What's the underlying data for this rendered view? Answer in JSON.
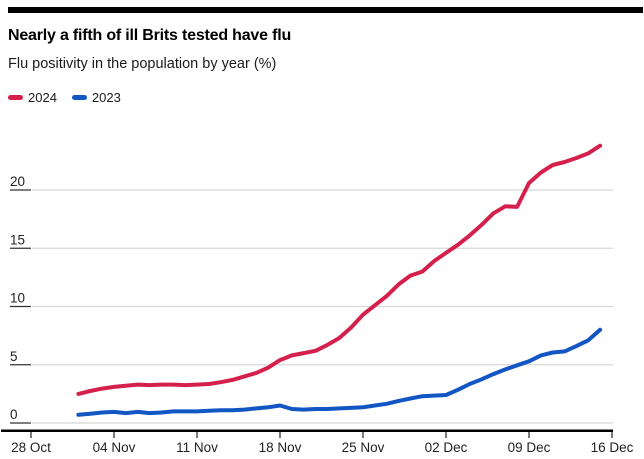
{
  "chart_data": {
    "type": "line",
    "title": "Nearly a fifth of ill Brits tested have flu",
    "subtitle": "Flu positivity in the population by year (%)",
    "grid": "horizontal-only",
    "legend_position": "top-left",
    "x_axis": {
      "range_days": [
        0,
        49
      ],
      "tick_days": [
        0,
        7,
        14,
        21,
        28,
        35,
        42,
        49
      ],
      "tick_labels": [
        "28 Oct",
        "04 Nov",
        "11 Nov",
        "18 Nov",
        "25 Nov",
        "02 Dec",
        "09 Dec",
        "16 Dec"
      ]
    },
    "y_axis": {
      "ticks": [
        0,
        5,
        10,
        15,
        20
      ],
      "range": [
        0,
        24
      ]
    },
    "series_start_day": 4,
    "series": [
      {
        "name": "2024",
        "color": "#d6204c",
        "values": [
          2.5,
          2.75,
          2.95,
          3.1,
          3.2,
          3.3,
          3.25,
          3.3,
          3.3,
          3.25,
          3.3,
          3.35,
          3.5,
          3.7,
          4.0,
          4.3,
          4.75,
          5.4,
          5.8,
          6.0,
          6.2,
          6.7,
          7.3,
          8.2,
          9.3,
          10.1,
          10.9,
          11.9,
          12.65,
          13.0,
          13.9,
          14.6,
          15.3,
          16.1,
          17.0,
          18.0,
          18.6,
          18.55,
          20.6,
          21.5,
          22.15,
          22.4,
          22.75,
          23.15,
          23.8
        ]
      },
      {
        "name": "2023",
        "color": "#1156c3",
        "values": [
          0.7,
          0.8,
          0.9,
          0.95,
          0.85,
          0.95,
          0.85,
          0.9,
          1.0,
          1.0,
          1.0,
          1.05,
          1.1,
          1.1,
          1.15,
          1.25,
          1.35,
          1.5,
          1.2,
          1.15,
          1.2,
          1.2,
          1.25,
          1.3,
          1.35,
          1.5,
          1.65,
          1.9,
          2.1,
          2.3,
          2.35,
          2.4,
          2.85,
          3.35,
          3.75,
          4.2,
          4.6,
          4.95,
          5.3,
          5.8,
          6.05,
          6.15,
          6.6,
          7.1,
          8.0
        ]
      }
    ]
  },
  "style": {
    "red": "#d6204c",
    "blue": "#1156c3",
    "gridline": "#d8d8d8",
    "axis_line": "#000000",
    "tick": "#333333",
    "axis_text": "#222222"
  }
}
